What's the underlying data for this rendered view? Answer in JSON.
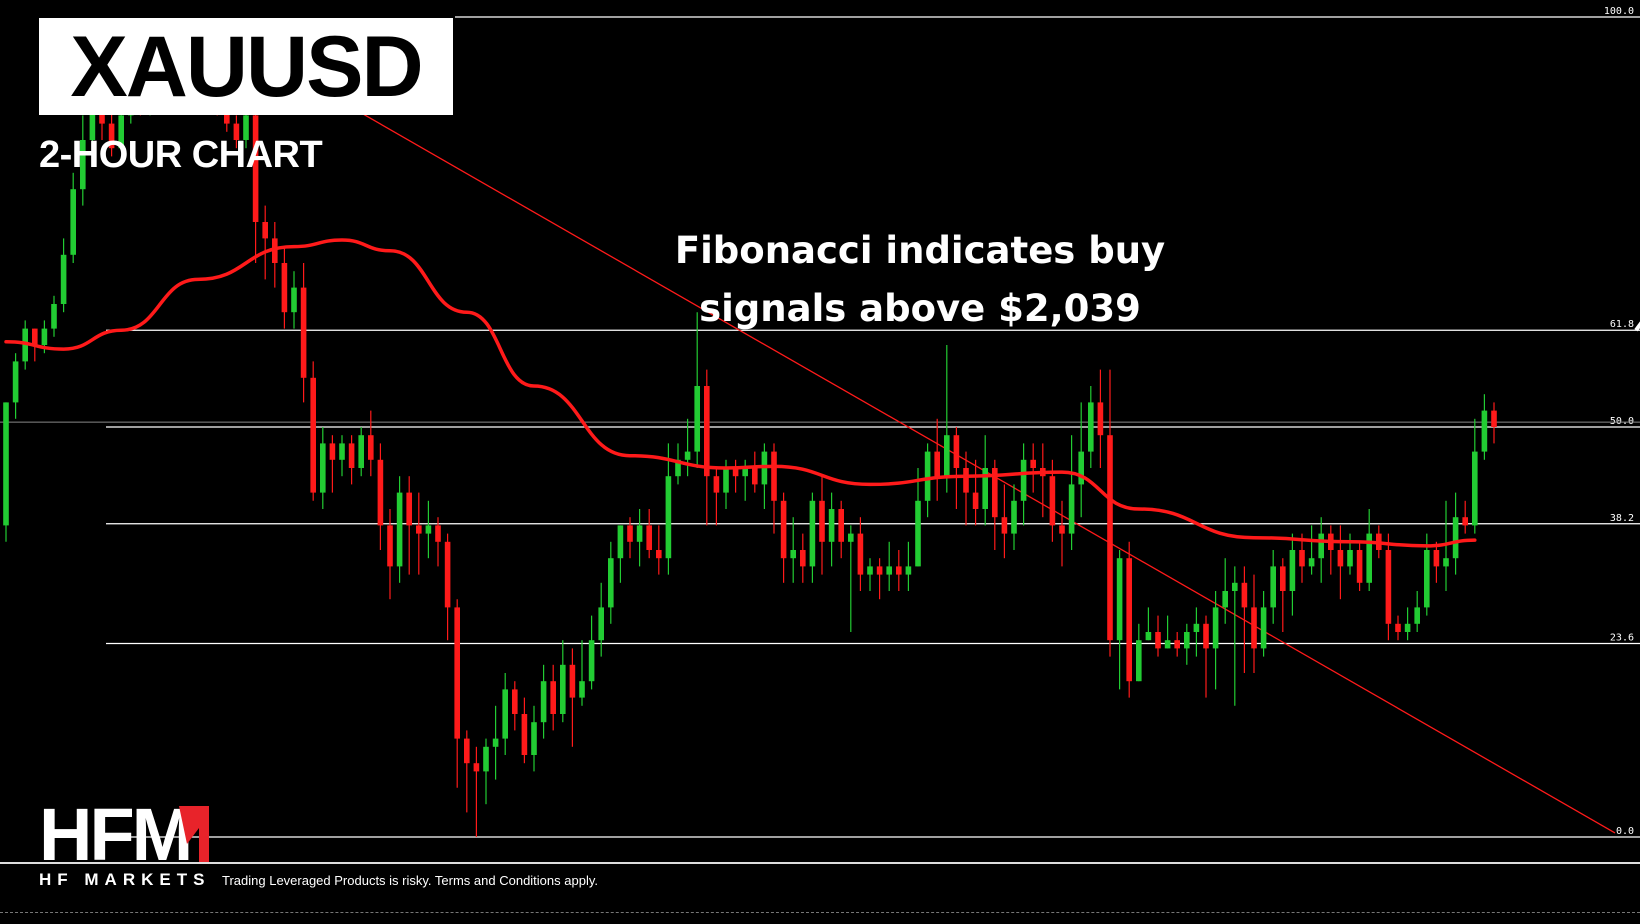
{
  "header": {
    "symbol": "XAUUSD",
    "timeframe": "2-HOUR CHART"
  },
  "annotation": {
    "line1": "Fibonacci indicates buy",
    "line2": "signals above $2,039"
  },
  "branding": {
    "logo": "HFM",
    "tagline": "HF MARKETS",
    "disclaimer": "Trading Leveraged Products is risky. Terms and Conditions apply."
  },
  "colors": {
    "bull": "#22cc33",
    "bear": "#ff1a1a",
    "ma": "#ff1a1a",
    "trendline": "#ff1a1a",
    "fib": "#ffffff",
    "background": "#000000"
  },
  "chart_data": {
    "type": "candlestick",
    "title": "XAUUSD",
    "subtitle": "2-HOUR CHART",
    "xlabel": "",
    "ylabel": "",
    "fib_levels": [
      {
        "label": "100.0",
        "value": 100.0
      },
      {
        "label": "61.8",
        "value": 61.8
      },
      {
        "label": "50.0",
        "value": 50.0
      },
      {
        "label": "38.2",
        "value": 38.2
      },
      {
        "label": "23.6",
        "value": 23.6
      },
      {
        "label": "0.0",
        "value": 0.0
      }
    ],
    "candles": [
      [
        38,
        53,
        53,
        36
      ],
      [
        53,
        58,
        59,
        51
      ],
      [
        58,
        62,
        63,
        57
      ],
      [
        62,
        60,
        62,
        58
      ],
      [
        60,
        62,
        63,
        59
      ],
      [
        62,
        65,
        66,
        61
      ],
      [
        65,
        71,
        73,
        64
      ],
      [
        71,
        79,
        81,
        70
      ],
      [
        79,
        85,
        88,
        77
      ],
      [
        85,
        93,
        95,
        84
      ],
      [
        93,
        87,
        95,
        85
      ],
      [
        87,
        84,
        89,
        83
      ],
      [
        84,
        88,
        90,
        86
      ],
      [
        88,
        91,
        93,
        87
      ],
      [
        91,
        89,
        93,
        88
      ],
      [
        89,
        94,
        96,
        88
      ],
      [
        94,
        92,
        96,
        90
      ],
      [
        92,
        95,
        97,
        91
      ],
      [
        95,
        91,
        97,
        90
      ],
      [
        91,
        94,
        96,
        89
      ],
      [
        94,
        91,
        96,
        90
      ],
      [
        91,
        93,
        95,
        90
      ],
      [
        93,
        89,
        95,
        88
      ],
      [
        89,
        87,
        90,
        86
      ],
      [
        87,
        85,
        88,
        84
      ],
      [
        85,
        88,
        89,
        84
      ],
      [
        88,
        75,
        89,
        70
      ],
      [
        75,
        73,
        77,
        68
      ],
      [
        73,
        70,
        75,
        67
      ],
      [
        70,
        64,
        72,
        62
      ],
      [
        64,
        67,
        69,
        62
      ],
      [
        67,
        56,
        70,
        53
      ],
      [
        56,
        42,
        58,
        41
      ],
      [
        42,
        48,
        50,
        40
      ],
      [
        48,
        46,
        49,
        42
      ],
      [
        46,
        48,
        49,
        44
      ],
      [
        48,
        45,
        49,
        43
      ],
      [
        45,
        49,
        50,
        44
      ],
      [
        49,
        46,
        52,
        44
      ],
      [
        46,
        38,
        48,
        35
      ],
      [
        38,
        33,
        40,
        29
      ],
      [
        33,
        42,
        44,
        31
      ],
      [
        42,
        38,
        44,
        32
      ],
      [
        38,
        37,
        42,
        32
      ],
      [
        37,
        38,
        41,
        34
      ],
      [
        38,
        36,
        39,
        33
      ],
      [
        36,
        28,
        37,
        24
      ],
      [
        28,
        12,
        29,
        6
      ],
      [
        12,
        9,
        13,
        3
      ],
      [
        9,
        8,
        11,
        0
      ],
      [
        8,
        11,
        12,
        4
      ],
      [
        11,
        12,
        16,
        7
      ],
      [
        12,
        18,
        20,
        10
      ],
      [
        18,
        15,
        19,
        13
      ],
      [
        15,
        10,
        17,
        9
      ],
      [
        10,
        14,
        16,
        8
      ],
      [
        14,
        19,
        21,
        12
      ],
      [
        19,
        15,
        21,
        13
      ],
      [
        15,
        21,
        24,
        14
      ],
      [
        21,
        17,
        23,
        11
      ],
      [
        17,
        19,
        24,
        16
      ],
      [
        19,
        24,
        27,
        18
      ],
      [
        24,
        28,
        31,
        22
      ],
      [
        28,
        34,
        36,
        26
      ],
      [
        34,
        38,
        38,
        31
      ],
      [
        38,
        36,
        39,
        34
      ],
      [
        36,
        38,
        40,
        33
      ],
      [
        38,
        35,
        40,
        34
      ],
      [
        35,
        34,
        38,
        32
      ],
      [
        34,
        44,
        48,
        32
      ],
      [
        44,
        46,
        48,
        43
      ],
      [
        46,
        47,
        51,
        44
      ],
      [
        47,
        55,
        64,
        45
      ],
      [
        55,
        44,
        57,
        38
      ],
      [
        44,
        42,
        45,
        38
      ],
      [
        42,
        45,
        46,
        40
      ],
      [
        45,
        44,
        46,
        42
      ],
      [
        44,
        45,
        46,
        41
      ],
      [
        45,
        43,
        47,
        42
      ],
      [
        43,
        47,
        48,
        40
      ],
      [
        47,
        41,
        48,
        37
      ],
      [
        41,
        34,
        42,
        31
      ],
      [
        34,
        35,
        39,
        31
      ],
      [
        35,
        33,
        37,
        31
      ],
      [
        33,
        41,
        42,
        31
      ],
      [
        41,
        36,
        44,
        32
      ],
      [
        36,
        40,
        42,
        33
      ],
      [
        40,
        36,
        41,
        34
      ],
      [
        36,
        37,
        38,
        25
      ],
      [
        37,
        32,
        39,
        30
      ],
      [
        32,
        33,
        34,
        30
      ],
      [
        33,
        32,
        34,
        29
      ],
      [
        32,
        33,
        36,
        30
      ],
      [
        33,
        32,
        35,
        30
      ],
      [
        32,
        33,
        36,
        30
      ],
      [
        33,
        41,
        45,
        33
      ],
      [
        41,
        47,
        48,
        39
      ],
      [
        47,
        44,
        51,
        41
      ],
      [
        44,
        49,
        60,
        42
      ],
      [
        49,
        45,
        50,
        40
      ],
      [
        45,
        42,
        47,
        38
      ],
      [
        42,
        40,
        46,
        38
      ],
      [
        40,
        45,
        49,
        38
      ],
      [
        45,
        39,
        46,
        35
      ],
      [
        39,
        37,
        43,
        34
      ],
      [
        37,
        41,
        43,
        35
      ],
      [
        41,
        46,
        48,
        38
      ],
      [
        46,
        45,
        48,
        42
      ],
      [
        45,
        44,
        48,
        39
      ],
      [
        44,
        38,
        46,
        36
      ],
      [
        38,
        37,
        41,
        33
      ],
      [
        37,
        43,
        49,
        35
      ],
      [
        43,
        47,
        53,
        39
      ],
      [
        47,
        53,
        55,
        45
      ],
      [
        53,
        49,
        57,
        45
      ],
      [
        49,
        24,
        57,
        22
      ],
      [
        24,
        34,
        35,
        18
      ],
      [
        34,
        19,
        36,
        17
      ],
      [
        19,
        24,
        26,
        19
      ],
      [
        24,
        25,
        28,
        24
      ],
      [
        25,
        23,
        27,
        22
      ],
      [
        23,
        24,
        27,
        23
      ],
      [
        24,
        23,
        25,
        22
      ],
      [
        23,
        25,
        26,
        21
      ],
      [
        25,
        26,
        28,
        22
      ],
      [
        26,
        23,
        27,
        17
      ],
      [
        23,
        28,
        30,
        18
      ],
      [
        28,
        30,
        34,
        26
      ],
      [
        30,
        31,
        33,
        16
      ],
      [
        31,
        28,
        33,
        20
      ],
      [
        28,
        23,
        32,
        20
      ],
      [
        23,
        28,
        30,
        22
      ],
      [
        28,
        33,
        35,
        26
      ],
      [
        33,
        30,
        34,
        25
      ],
      [
        30,
        35,
        37,
        27
      ],
      [
        35,
        33,
        37,
        31
      ],
      [
        33,
        34,
        38,
        32
      ],
      [
        34,
        37,
        39,
        31
      ],
      [
        37,
        35,
        38,
        32
      ],
      [
        35,
        33,
        38,
        29
      ],
      [
        33,
        35,
        37,
        32
      ],
      [
        35,
        31,
        36,
        30
      ],
      [
        31,
        37,
        40,
        30
      ],
      [
        37,
        35,
        38,
        34
      ],
      [
        35,
        26,
        37,
        24
      ],
      [
        26,
        25,
        27,
        24
      ],
      [
        25,
        26,
        28,
        24
      ],
      [
        26,
        28,
        30,
        25
      ],
      [
        28,
        35,
        37,
        27
      ],
      [
        35,
        33,
        36,
        31
      ],
      [
        33,
        34,
        41,
        30
      ],
      [
        34,
        39,
        42,
        32
      ],
      [
        39,
        38,
        41,
        37
      ],
      [
        38,
        47,
        51,
        37
      ],
      [
        47,
        52,
        54,
        46
      ],
      [
        52,
        50,
        53,
        48
      ]
    ],
    "moving_average": [
      [
        0,
        60.4
      ],
      [
        6,
        59.5
      ],
      [
        12,
        61.8
      ],
      [
        20,
        68.0
      ],
      [
        30,
        72.0
      ],
      [
        35,
        72.8
      ],
      [
        40,
        71.5
      ],
      [
        48,
        64.0
      ],
      [
        55,
        55.0
      ],
      [
        65,
        46.5
      ],
      [
        75,
        45.0
      ],
      [
        80,
        45.2
      ],
      [
        90,
        43.0
      ],
      [
        100,
        44.0
      ],
      [
        110,
        44.5
      ],
      [
        118,
        40.0
      ],
      [
        130,
        36.5
      ],
      [
        140,
        36.0
      ],
      [
        148,
        35.5
      ],
      [
        153,
        36.2
      ]
    ],
    "trendline": {
      "from": [
        30,
        93.0
      ],
      "to": [
        200,
        0.5
      ]
    },
    "arrow": {
      "from": [
        160,
        61.8
      ],
      "to": [
        182,
        96.5
      ]
    },
    "y_range": [
      0,
      100
    ],
    "grid": false
  }
}
